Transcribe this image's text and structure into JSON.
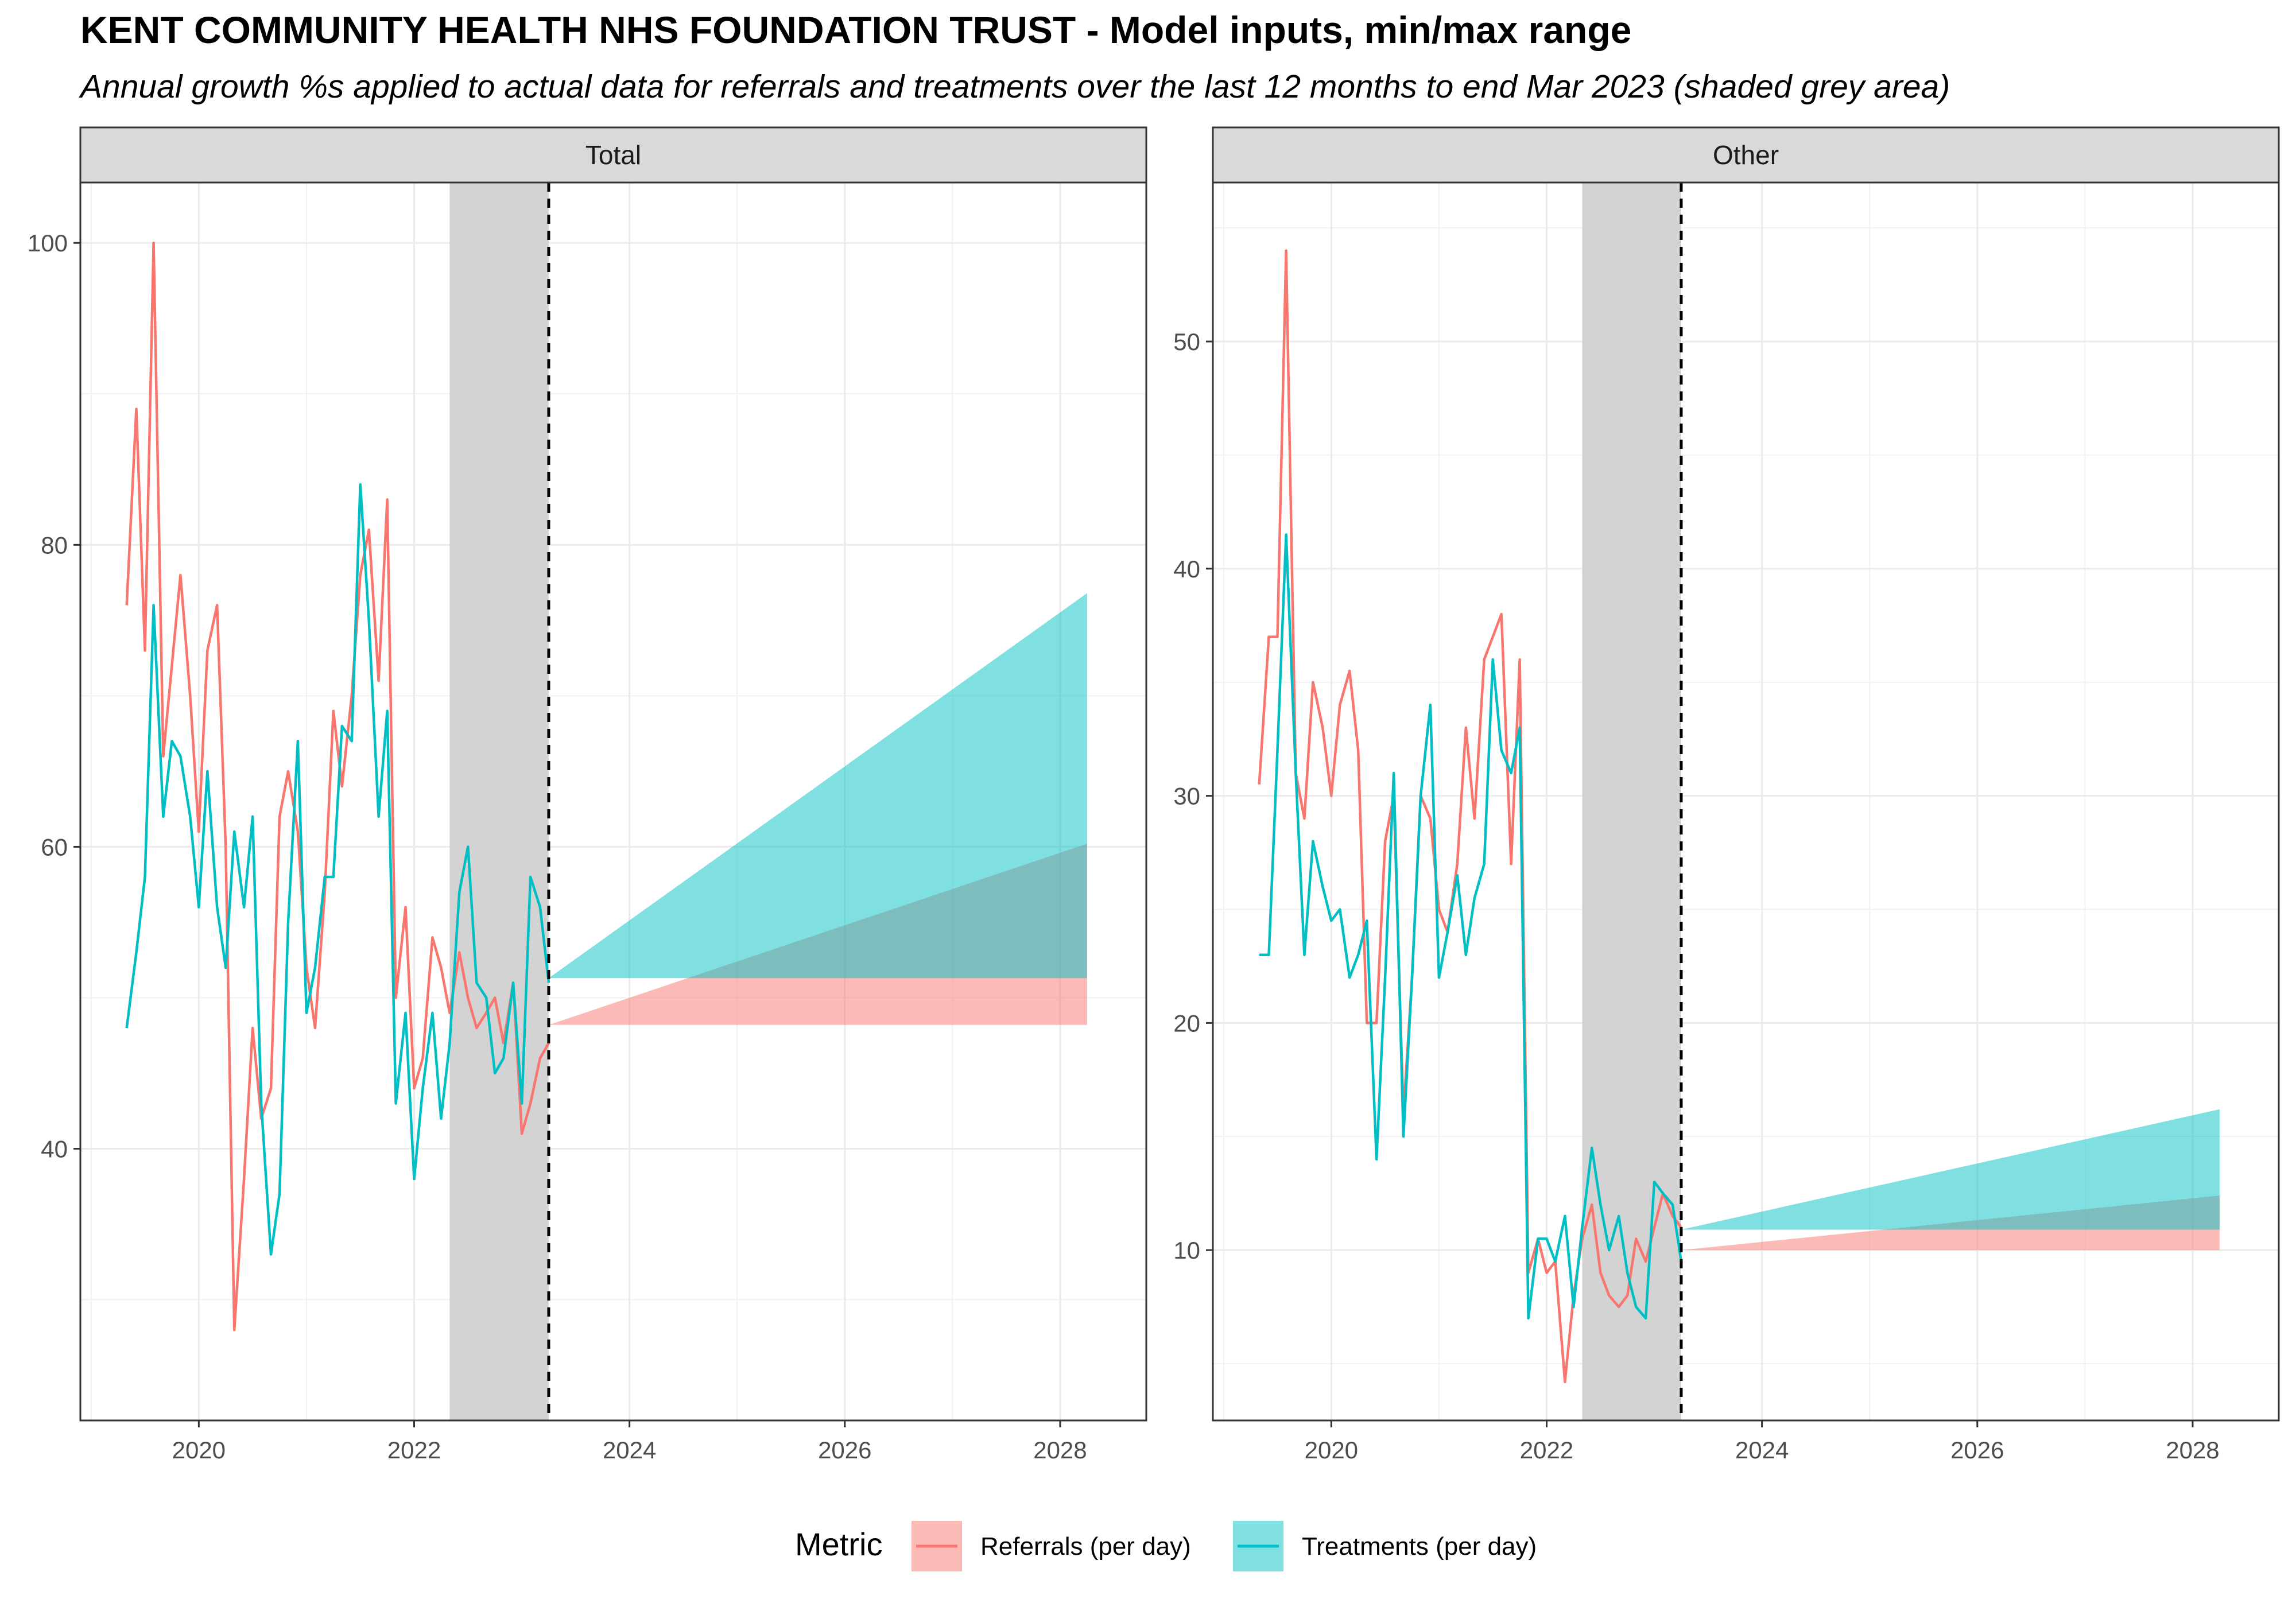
{
  "chart_data": {
    "type": "line",
    "title": "KENT COMMUNITY HEALTH NHS FOUNDATION TRUST - Model inputs, min/max range",
    "subtitle": "Annual growth %s applied to actual data for referrals and treatments over the last 12 months to end Mar 2023 (shaded grey area)",
    "legend": {
      "title": "Metric",
      "position": "bottom",
      "entries": [
        "Referrals (per day)",
        "Treatments (per day)"
      ]
    },
    "colors": {
      "referrals": "#F8766D",
      "treatments": "#00BFC4",
      "shade": "#d3d3d3",
      "band_overlap": "#808080"
    },
    "x_ticks": [
      2020,
      2022,
      2024,
      2026,
      2028
    ],
    "x_range": [
      2018.9,
      2028.8
    ],
    "shaded_period": [
      2022.33,
      2023.25
    ],
    "forecast_end": 2028.25,
    "panels": [
      {
        "label": "Total",
        "y_range": [
          22,
          104
        ],
        "y_ticks": [
          40,
          60,
          80,
          100
        ],
        "series": [
          {
            "name": "Referrals (per day)",
            "x": [
              2019.33,
              2019.42,
              2019.5,
              2019.58,
              2019.67,
              2019.75,
              2019.83,
              2019.92,
              2020.0,
              2020.08,
              2020.17,
              2020.25,
              2020.33,
              2020.42,
              2020.5,
              2020.58,
              2020.67,
              2020.75,
              2020.83,
              2020.92,
              2021.0,
              2021.08,
              2021.17,
              2021.25,
              2021.33,
              2021.42,
              2021.5,
              2021.58,
              2021.67,
              2021.75,
              2021.83,
              2021.92,
              2022.0,
              2022.08,
              2022.17,
              2022.25,
              2022.33,
              2022.42,
              2022.5,
              2022.58,
              2022.67,
              2022.75,
              2022.83,
              2022.92,
              2023.0,
              2023.08,
              2023.17,
              2023.25
            ],
            "y": [
              76,
              89,
              73,
              100,
              66,
              72,
              78,
              70,
              61,
              73,
              76,
              60,
              28,
              38,
              48,
              42,
              44,
              62,
              65,
              61,
              52,
              48,
              57,
              69,
              64,
              70,
              78,
              81,
              71,
              83,
              50,
              56,
              44,
              46,
              54,
              52,
              49,
              53,
              50,
              48,
              49,
              50,
              47,
              51,
              41,
              43,
              46,
              47
            ]
          },
          {
            "name": "Treatments (per day)",
            "x": [
              2019.33,
              2019.42,
              2019.5,
              2019.58,
              2019.67,
              2019.75,
              2019.83,
              2019.92,
              2020.0,
              2020.08,
              2020.17,
              2020.25,
              2020.33,
              2020.42,
              2020.5,
              2020.58,
              2020.67,
              2020.75,
              2020.83,
              2020.92,
              2021.0,
              2021.08,
              2021.17,
              2021.25,
              2021.33,
              2021.42,
              2021.5,
              2021.58,
              2021.67,
              2021.75,
              2021.83,
              2021.92,
              2022.0,
              2022.08,
              2022.17,
              2022.25,
              2022.33,
              2022.42,
              2022.5,
              2022.58,
              2022.67,
              2022.75,
              2022.83,
              2022.92,
              2023.0,
              2023.08,
              2023.17,
              2023.25
            ],
            "y": [
              48,
              53,
              58,
              76,
              62,
              67,
              66,
              62,
              56,
              65,
              56,
              52,
              61,
              56,
              62,
              43,
              33,
              37,
              55,
              67,
              49,
              52,
              58,
              58,
              68,
              67,
              84,
              75,
              62,
              69,
              43,
              49,
              38,
              44,
              49,
              42,
              47,
              57,
              60,
              51,
              50,
              45,
              46,
              51,
              43,
              58,
              56,
              51
            ]
          }
        ],
        "bands": [
          {
            "name": "Referrals (per day)",
            "start": 48.2,
            "end_min": 48.2,
            "end_max": 60.2
          },
          {
            "name": "Treatments (per day)",
            "start": 51.3,
            "end_min": 51.3,
            "end_max": 76.8
          }
        ]
      },
      {
        "label": "Other",
        "y_range": [
          2.5,
          57
        ],
        "y_ticks": [
          10,
          20,
          30,
          40,
          50
        ],
        "series": [
          {
            "name": "Referrals (per day)",
            "x": [
              2019.33,
              2019.42,
              2019.5,
              2019.58,
              2019.67,
              2019.75,
              2019.83,
              2019.92,
              2020.0,
              2020.08,
              2020.17,
              2020.25,
              2020.33,
              2020.42,
              2020.5,
              2020.58,
              2020.67,
              2020.75,
              2020.83,
              2020.92,
              2021.0,
              2021.08,
              2021.17,
              2021.25,
              2021.33,
              2021.42,
              2021.5,
              2021.58,
              2021.67,
              2021.75,
              2021.83,
              2021.92,
              2022.0,
              2022.08,
              2022.17,
              2022.25,
              2022.33,
              2022.42,
              2022.5,
              2022.58,
              2022.67,
              2022.75,
              2022.83,
              2022.92,
              2023.0,
              2023.08,
              2023.17,
              2023.25
            ],
            "y": [
              30.5,
              37,
              37,
              54,
              31,
              29,
              35,
              33,
              30,
              34,
              35.5,
              32,
              20,
              20,
              28,
              30,
              16,
              22,
              30,
              29,
              25,
              24,
              27,
              33,
              29,
              36,
              37,
              38,
              27,
              36,
              9,
              10.5,
              9,
              9.5,
              4.2,
              8,
              10.5,
              12,
              9,
              8,
              7.5,
              8,
              10.5,
              9.5,
              11,
              12.5,
              11.5,
              11
            ]
          },
          {
            "name": "Treatments (per day)",
            "x": [
              2019.33,
              2019.42,
              2019.5,
              2019.58,
              2019.67,
              2019.75,
              2019.83,
              2019.92,
              2020.0,
              2020.08,
              2020.17,
              2020.25,
              2020.33,
              2020.42,
              2020.5,
              2020.58,
              2020.67,
              2020.75,
              2020.83,
              2020.92,
              2021.0,
              2021.08,
              2021.17,
              2021.25,
              2021.33,
              2021.42,
              2021.5,
              2021.58,
              2021.67,
              2021.75,
              2021.83,
              2021.92,
              2022.0,
              2022.08,
              2022.17,
              2022.25,
              2022.33,
              2022.42,
              2022.5,
              2022.58,
              2022.67,
              2022.75,
              2022.83,
              2022.92,
              2023.0,
              2023.08,
              2023.17,
              2023.25
            ],
            "y": [
              23,
              23,
              32,
              41.5,
              31,
              23,
              28,
              26,
              24.5,
              25,
              22,
              23,
              24.5,
              14,
              22,
              31,
              15,
              22,
              30,
              34,
              22,
              24,
              26.5,
              23,
              25.5,
              27,
              36,
              32,
              31,
              33,
              7,
              10.5,
              10.5,
              9.5,
              11.5,
              7.5,
              11,
              14.5,
              12,
              10,
              11.5,
              9,
              7.5,
              7,
              13,
              12.5,
              12,
              9.5
            ]
          }
        ],
        "bands": [
          {
            "name": "Referrals (per day)",
            "start": 10.0,
            "end_min": 10.0,
            "end_max": 12.4
          },
          {
            "name": "Treatments (per day)",
            "start": 10.9,
            "end_min": 10.9,
            "end_max": 16.2
          }
        ]
      }
    ]
  }
}
